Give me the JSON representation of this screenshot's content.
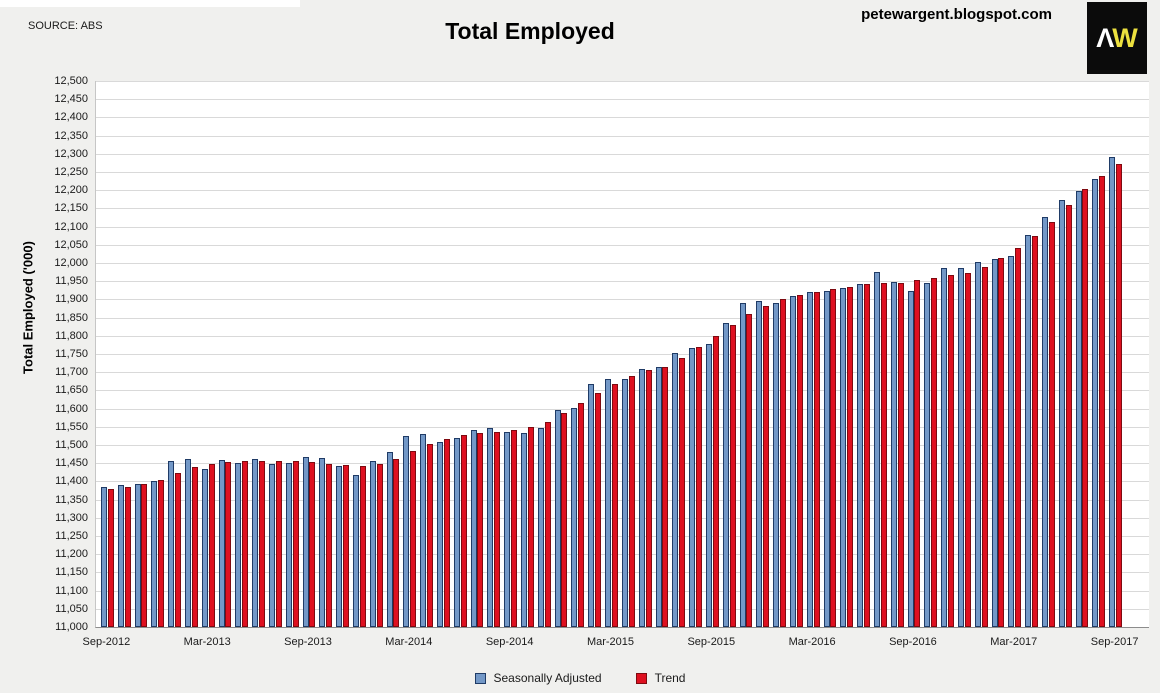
{
  "header": {
    "source": "SOURCE: ABS",
    "title": "Total Employed",
    "site": "petewargent.blogspot.com",
    "logo_a": "Λ",
    "logo_w": "W"
  },
  "y_axis": {
    "title": "Total Employed ('000)",
    "max": 12500,
    "min": 11000,
    "step": 50,
    "tick_labels": [
      "12,500",
      "12,450",
      "12,400",
      "12,350",
      "12,300",
      "12,250",
      "12,200",
      "12,150",
      "12,100",
      "12,050",
      "12,000",
      "11,950",
      "11,900",
      "11,850",
      "11,800",
      "11,750",
      "11,700",
      "11,650",
      "11,600",
      "11,550",
      "11,500",
      "11,450",
      "11,400",
      "11,350",
      "11,300",
      "11,250",
      "11,200",
      "11,150",
      "11,100",
      "11,050",
      "11,000"
    ]
  },
  "x_axis": {
    "tick_every": 6,
    "tick_labels": [
      "Sep-2012",
      "Mar-2013",
      "Sep-2013",
      "Mar-2014",
      "Sep-2014",
      "Mar-2015",
      "Sep-2015",
      "Mar-2016",
      "Sep-2016",
      "Mar-2017",
      "Sep-2017"
    ]
  },
  "legend": [
    {
      "label": "Seasonally Adjusted",
      "color": "#7398C7",
      "border": "#1F3B66"
    },
    {
      "label": "Trend",
      "color": "#DE1020",
      "border": "#7E0A10"
    }
  ],
  "colors": {
    "gridline": "#D9D9D9",
    "plot_background": "#FFFFFF",
    "page_background": "#F0F0EE"
  },
  "chart_data": {
    "type": "bar",
    "title": "Total Employed",
    "ylabel": "Total Employed ('000)",
    "ylim": [
      11000,
      12500
    ],
    "grid": true,
    "legend_position": "bottom",
    "x": [
      "Sep-2012",
      "Oct-2012",
      "Nov-2012",
      "Dec-2012",
      "Jan-2013",
      "Feb-2013",
      "Mar-2013",
      "Apr-2013",
      "May-2013",
      "Jun-2013",
      "Jul-2013",
      "Aug-2013",
      "Sep-2013",
      "Oct-2013",
      "Nov-2013",
      "Dec-2013",
      "Jan-2014",
      "Feb-2014",
      "Mar-2014",
      "Apr-2014",
      "May-2014",
      "Jun-2014",
      "Jul-2014",
      "Aug-2014",
      "Sep-2014",
      "Oct-2014",
      "Nov-2014",
      "Dec-2014",
      "Jan-2015",
      "Feb-2015",
      "Mar-2015",
      "Apr-2015",
      "May-2015",
      "Jun-2015",
      "Jul-2015",
      "Aug-2015",
      "Sep-2015",
      "Oct-2015",
      "Nov-2015",
      "Dec-2015",
      "Jan-2016",
      "Feb-2016",
      "Mar-2016",
      "Apr-2016",
      "May-2016",
      "Jun-2016",
      "Jul-2016",
      "Aug-2016",
      "Sep-2016",
      "Oct-2016",
      "Nov-2016",
      "Dec-2016",
      "Jan-2017",
      "Feb-2017",
      "Mar-2017",
      "Apr-2017",
      "May-2017",
      "Jun-2017",
      "Jul-2017",
      "Aug-2017",
      "Sep-2017"
    ],
    "series": [
      {
        "name": "Seasonally Adjusted",
        "color": "#7398C7",
        "border": "#1F3B66",
        "values": [
          11385,
          11390,
          11392,
          11400,
          11456,
          11461,
          11434,
          11459,
          11451,
          11461,
          11447,
          11451,
          11466,
          11464,
          11442,
          11417,
          11457,
          11482,
          11525,
          11529,
          11508,
          11518,
          11541,
          11547,
          11536,
          11532,
          11546,
          11596,
          11602,
          11668,
          11682,
          11680,
          11708,
          11715,
          11754,
          11766,
          11778,
          11834,
          11891,
          11896,
          11891,
          11910,
          11919,
          11923,
          11930,
          11941,
          11976,
          11949,
          11924,
          11944,
          11985,
          11985,
          12002,
          12011,
          12020,
          12077,
          12125,
          12172,
          12197,
          12230,
          12292
        ]
      },
      {
        "name": "Trend",
        "color": "#DE1020",
        "border": "#7E0A10",
        "values": [
          11379,
          11385,
          11393,
          11404,
          11424,
          11440,
          11449,
          11454,
          11457,
          11457,
          11456,
          11455,
          11452,
          11448,
          11444,
          11443,
          11448,
          11462,
          11483,
          11502,
          11517,
          11527,
          11533,
          11536,
          11540,
          11549,
          11562,
          11588,
          11615,
          11642,
          11668,
          11689,
          11705,
          11714,
          11740,
          11770,
          11800,
          11829,
          11860,
          11882,
          11900,
          11913,
          11919,
          11929,
          11935,
          11941,
          11944,
          11946,
          11953,
          11960,
          11967,
          11972,
          11988,
          12014,
          12042,
          12073,
          12112,
          12158,
          12202,
          12238,
          12273
        ]
      }
    ]
  }
}
